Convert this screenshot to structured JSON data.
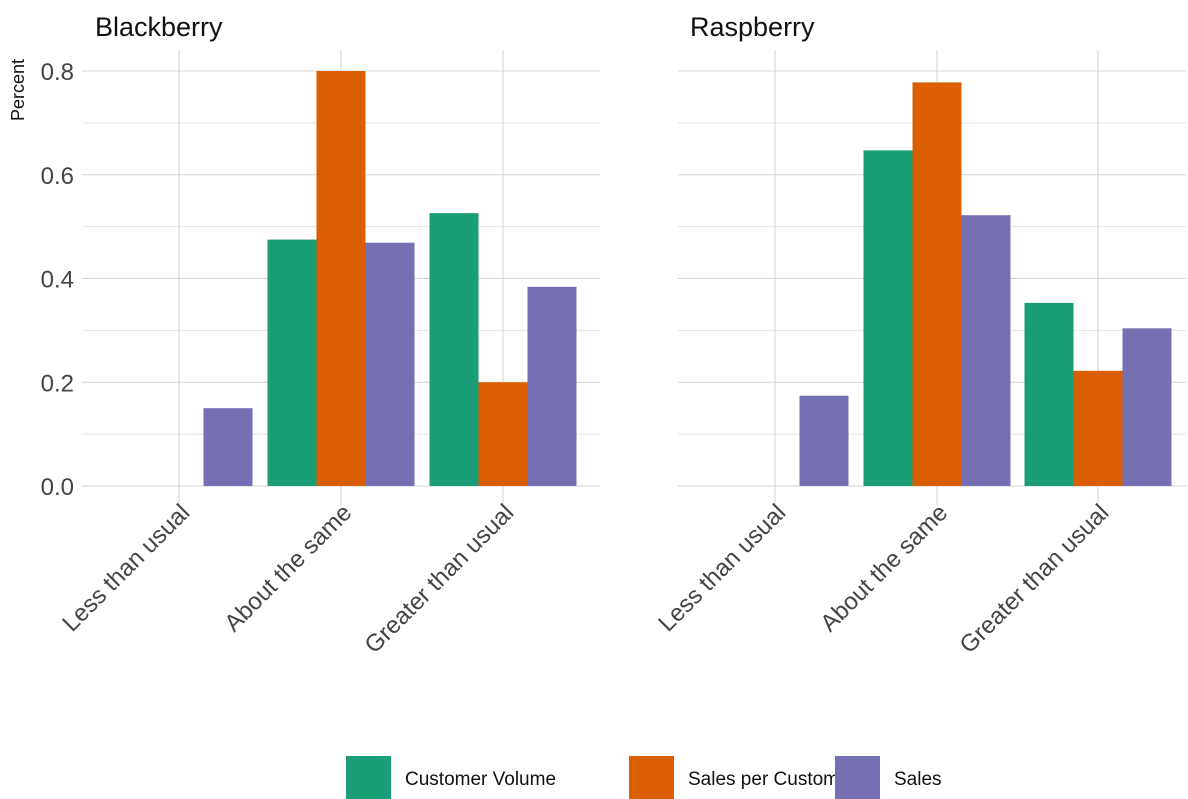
{
  "chart_data": {
    "type": "bar",
    "ylabel": "Percent",
    "ylim": [
      0,
      0.84
    ],
    "yticks": [
      0.0,
      0.2,
      0.4,
      0.6,
      0.8
    ],
    "ytick_labels": [
      "0.0",
      "0.2",
      "0.4",
      "0.6",
      "0.8"
    ],
    "categories": [
      "Less than usual",
      "About the same",
      "Greater than usual"
    ],
    "legend": {
      "position": "bottom",
      "entries": [
        {
          "name": "Customer Volume",
          "color": "#1b9e77"
        },
        {
          "name": "Sales per Customer",
          "color": "#d95f02"
        },
        {
          "name": "Sales",
          "color": "#7570b3"
        }
      ]
    },
    "grid": true,
    "panels": [
      {
        "title": "Blackberry",
        "series": [
          {
            "name": "Customer Volume",
            "values": [
              null,
              0.475,
              0.526
            ]
          },
          {
            "name": "Sales per Customer",
            "values": [
              null,
              0.8,
              0.2
            ]
          },
          {
            "name": "Sales",
            "values": [
              0.15,
              0.469,
              0.384
            ]
          }
        ]
      },
      {
        "title": "Raspberry",
        "series": [
          {
            "name": "Customer Volume",
            "values": [
              null,
              0.647,
              0.353
            ]
          },
          {
            "name": "Sales per Customer",
            "values": [
              null,
              0.778,
              0.222
            ]
          },
          {
            "name": "Sales",
            "values": [
              0.174,
              0.522,
              0.304
            ]
          }
        ]
      }
    ]
  }
}
